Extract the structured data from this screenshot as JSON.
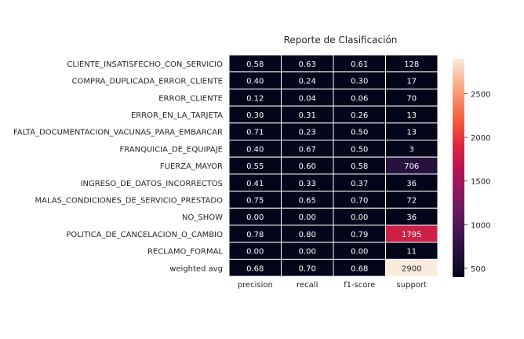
{
  "chart_data": {
    "type": "heatmap",
    "title": "Reporte de Clasificación",
    "xlabel": "",
    "ylabel": "",
    "columns": [
      "precision",
      "recall",
      "f1-score",
      "support"
    ],
    "rows": [
      "CLIENTE_INSATISFECHO_CON_SERVICIO",
      "COMPRA_DUPLICADA_ERROR_CLIENTE",
      "ERROR_CLIENTE",
      "ERROR_EN_LA_TARJETA",
      "FALTA_DOCUMENTACION_VACUNAS_PARA_EMBARCAR",
      "FRANQUICIA_DE_EQUIPAJE",
      "FUERZA_MAYOR",
      "INGRESO_DE_DATOS_INCORRECTOS",
      "MALAS_CONDICIONES_DE_SERVICIO_PRESTADO",
      "NO_SHOW",
      "POLITICA_DE_CANCELACION_O_CAMBIO",
      "RECLAMO_FORMAL",
      "weighted avg"
    ],
    "values": [
      [
        0.58,
        0.63,
        0.61,
        128
      ],
      [
        0.4,
        0.24,
        0.3,
        17
      ],
      [
        0.12,
        0.04,
        0.06,
        70
      ],
      [
        0.3,
        0.31,
        0.26,
        13
      ],
      [
        0.71,
        0.23,
        0.5,
        13
      ],
      [
        0.4,
        0.67,
        0.5,
        3
      ],
      [
        0.55,
        0.6,
        0.58,
        706
      ],
      [
        0.41,
        0.33,
        0.37,
        36
      ],
      [
        0.75,
        0.65,
        0.7,
        72
      ],
      [
        0.0,
        0.0,
        0.0,
        36
      ],
      [
        0.78,
        0.8,
        0.79,
        1795
      ],
      [
        0.0,
        0.0,
        0.0,
        11
      ],
      [
        0.68,
        0.7,
        0.68,
        2900
      ]
    ],
    "annotations": [
      [
        "0.58",
        "0.63",
        "0.61",
        "128"
      ],
      [
        "0.40",
        "0.24",
        "0.30",
        "17"
      ],
      [
        "0.12",
        "0.04",
        "0.06",
        "70"
      ],
      [
        "0.30",
        "0.31",
        "0.26",
        "13"
      ],
      [
        "0.71",
        "0.23",
        "0.50",
        "13"
      ],
      [
        "0.40",
        "0.67",
        "0.50",
        "3"
      ],
      [
        "0.55",
        "0.60",
        "0.58",
        "706"
      ],
      [
        "0.41",
        "0.33",
        "0.37",
        "36"
      ],
      [
        "0.75",
        "0.65",
        "0.70",
        "72"
      ],
      [
        "0.00",
        "0.00",
        "0.00",
        "36"
      ],
      [
        "0.78",
        "0.80",
        "0.79",
        "1795"
      ],
      [
        "0.00",
        "0.00",
        "0.00",
        "11"
      ],
      [
        "0.68",
        "0.70",
        "0.68",
        "2900"
      ]
    ],
    "colorbar": {
      "range": [
        400,
        2900
      ],
      "ticks": [
        500,
        1000,
        1500,
        2000,
        2500
      ],
      "tick_labels": [
        "500",
        "1000",
        "1500",
        "2000",
        "2500"
      ],
      "colormap": "rocket"
    },
    "colors": {
      "cell_border": "#ffffff",
      "text_dark_cell": "#ffffff",
      "text_light_cell": "#262626"
    },
    "grid": false
  }
}
